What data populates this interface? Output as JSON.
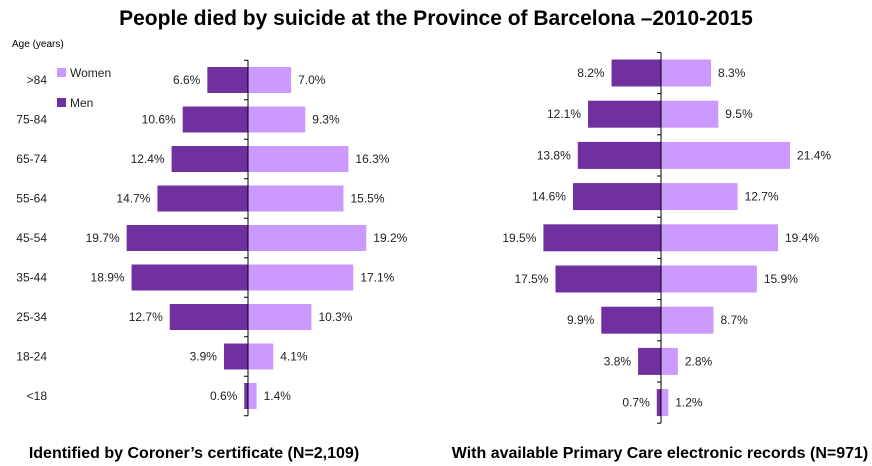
{
  "title": "People died by suicide at the Province of Barcelona –2010-2015",
  "colors": {
    "women": "#cc99ff",
    "men": "#7030a0",
    "axis": "#000000"
  },
  "chart_data": [
    {
      "type": "bar",
      "orientation": "horizontal-population-pyramid",
      "caption": "Identified by Coroner’s certificate  (N=2,109)",
      "ylabel": "Age (years)",
      "categories": [
        ">84",
        "75-84",
        "65-74",
        "55-64",
        "45-54",
        "35-44",
        "25-34",
        "18-24",
        "<18"
      ],
      "legend": {
        "position": "top-left",
        "entries": [
          "Women",
          "Men"
        ]
      },
      "series": [
        {
          "name": "Women",
          "side": "right",
          "values": [
            7.0,
            9.3,
            16.3,
            15.5,
            19.2,
            17.1,
            10.3,
            4.1,
            1.4
          ],
          "labels": [
            "7.0%",
            "9.3%",
            "16.3%",
            "15.5%",
            "19.2%",
            "17.1%",
            "10.3%",
            "4.1%",
            "1.4%"
          ]
        },
        {
          "name": "Men",
          "side": "left",
          "values": [
            6.6,
            10.6,
            12.4,
            14.7,
            19.7,
            18.9,
            12.7,
            3.9,
            0.6
          ],
          "labels": [
            "6.6%",
            "10.6%",
            "12.4%",
            "14.7%",
            "19.7%",
            "18.9%",
            "12.7%",
            "3.9%",
            "0.6%"
          ]
        }
      ],
      "grid": false
    },
    {
      "type": "bar",
      "orientation": "horizontal-population-pyramid",
      "caption": "With available Primary Care electronic records (N=971)",
      "categories": [
        ">84",
        "75-84",
        "65-74",
        "55-64",
        "45-54",
        "35-44",
        "25-34",
        "18-24",
        "<18"
      ],
      "series": [
        {
          "name": "Women",
          "side": "right",
          "values": [
            8.3,
            9.5,
            21.4,
            12.7,
            19.4,
            15.9,
            8.7,
            2.8,
            1.2
          ],
          "labels": [
            "8.3%",
            "9.5%",
            "21.4%",
            "12.7%",
            "19.4%",
            "15.9%",
            "8.7%",
            "2.8%",
            "1.2%"
          ]
        },
        {
          "name": "Men",
          "side": "left",
          "values": [
            8.2,
            12.1,
            13.8,
            14.6,
            19.5,
            17.5,
            9.9,
            3.8,
            0.7
          ],
          "labels": [
            "8.2%",
            "12.1%",
            "13.8%",
            "14.6%",
            "19.5%",
            "17.5%",
            "9.9%",
            "3.8%",
            "0.7%"
          ]
        }
      ],
      "grid": false
    }
  ]
}
